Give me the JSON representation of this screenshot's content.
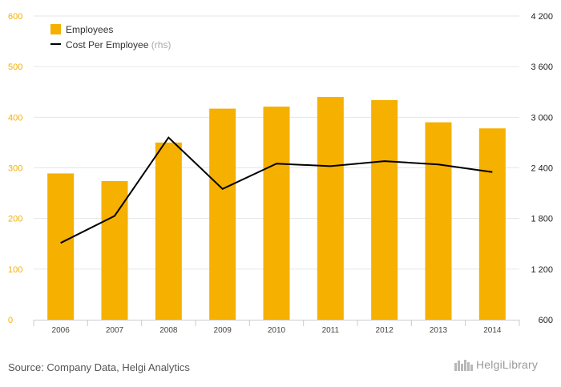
{
  "chart_data": {
    "type": "bar+line",
    "categories": [
      "2006",
      "2007",
      "2008",
      "2009",
      "2010",
      "2011",
      "2012",
      "2013",
      "2014"
    ],
    "series": [
      {
        "name": "Employees",
        "type": "bar",
        "axis": "left",
        "color": "#f5b000",
        "values": [
          289,
          274,
          350,
          417,
          421,
          440,
          434,
          390,
          378
        ]
      },
      {
        "name": "Cost Per Employee",
        "name_suffix": "(rhs)",
        "type": "line",
        "axis": "right",
        "color": "#000000",
        "values": [
          1510,
          1830,
          2760,
          2150,
          2450,
          2420,
          2480,
          2440,
          2350
        ]
      }
    ],
    "y_left": {
      "ylim": [
        0,
        600
      ],
      "ticks": [
        "0",
        "100",
        "200",
        "300",
        "400",
        "500",
        "600"
      ],
      "tick_color": "#f5b000"
    },
    "y_right": {
      "ylim": [
        600,
        4200
      ],
      "ticks": [
        "600",
        "1 200",
        "1 800",
        "2 400",
        "3 000",
        "3 600",
        "4 200"
      ]
    },
    "grid": true,
    "legend_position": "top-left"
  },
  "footer": {
    "source": "Source: Company Data, Helgi Analytics",
    "logo": "HelgiLibrary"
  }
}
